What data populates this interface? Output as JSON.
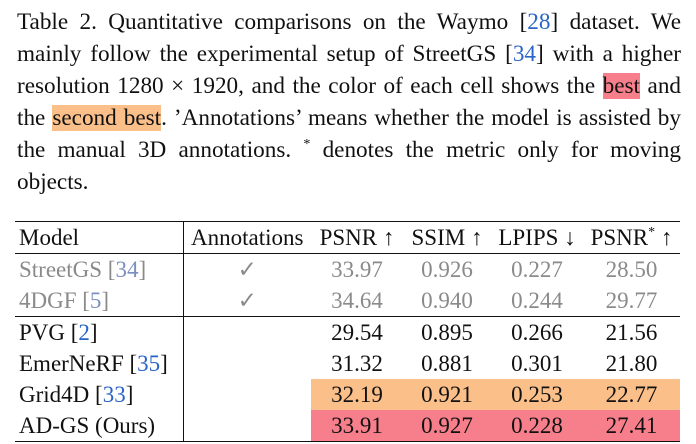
{
  "caption": {
    "p1": "Table 2.  Quantitative comparisons on the Waymo [",
    "ref_waymo": "28",
    "p2": "] dataset. We mainly follow the experimental setup of StreetGS [",
    "ref_streetgs": "34",
    "p3": "] with a higher resolution 1280 × 1920, and the color of each cell shows the ",
    "best": "best",
    "p4": " and the ",
    "second_best": "second best",
    "p5": ". ’Annotations’ means whether the model is assisted by the manual 3D annotations. ",
    "star": "*",
    "p6": " denotes the metric only for moving objects."
  },
  "table": {
    "headers": {
      "model": "Model",
      "annotations": "Annotations",
      "psnr": "PSNR ↑",
      "ssim": "SSIM ↑",
      "lpips": "LPIPS ↓",
      "psnr_star_a": "PSNR",
      "psnr_star_sup": "*",
      "psnr_star_b": " ↑"
    },
    "rows": [
      {
        "model": "StreetGS [",
        "ref": "34",
        "close": "]",
        "annotations": "✓",
        "psnr": "33.97",
        "ssim": "0.926",
        "lpips": "0.227",
        "psnr_star": "28.50"
      },
      {
        "model": "4DGF [",
        "ref": "5",
        "close": "]",
        "annotations": "✓",
        "psnr": "34.64",
        "ssim": "0.940",
        "lpips": "0.244",
        "psnr_star": "29.77"
      },
      {
        "model": "PVG [",
        "ref": "2",
        "close": "]",
        "annotations": "",
        "psnr": "29.54",
        "ssim": "0.895",
        "lpips": "0.266",
        "psnr_star": "21.56"
      },
      {
        "model": "EmerNeRF [",
        "ref": "35",
        "close": "]",
        "annotations": "",
        "psnr": "31.32",
        "ssim": "0.881",
        "lpips": "0.301",
        "psnr_star": "21.80"
      },
      {
        "model": "Grid4D [",
        "ref": "33",
        "close": "]",
        "annotations": "",
        "psnr": "32.19",
        "ssim": "0.921",
        "lpips": "0.253",
        "psnr_star": "22.77"
      },
      {
        "model": "AD-GS (Ours)",
        "ref": "",
        "close": "",
        "annotations": "",
        "psnr": "33.91",
        "ssim": "0.927",
        "lpips": "0.228",
        "psnr_star": "27.41"
      }
    ],
    "colors": {
      "best": "#f77f8b",
      "second_best": "#fbbf8a",
      "gray_text": "#8a8a8a"
    }
  }
}
